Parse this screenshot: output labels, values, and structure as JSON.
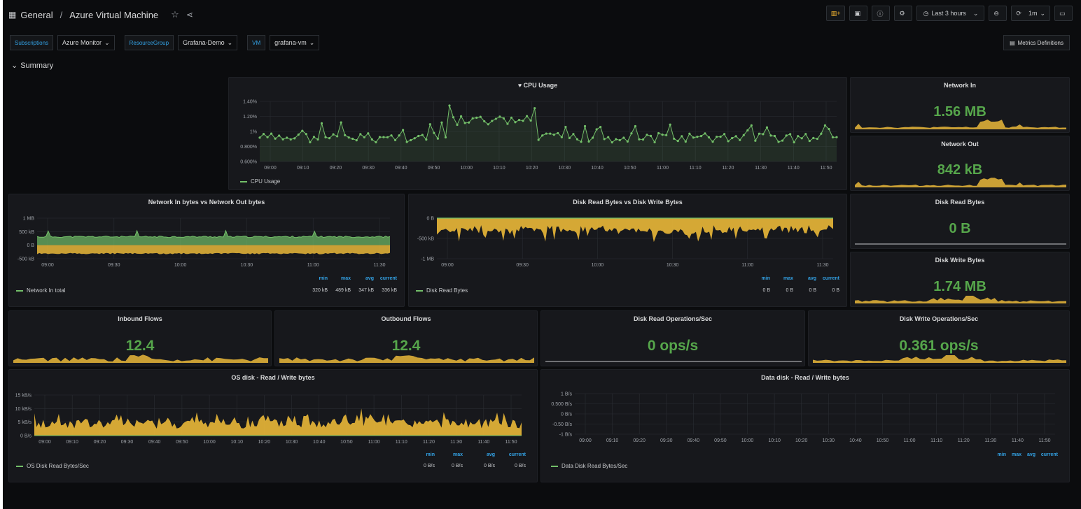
{
  "header": {
    "folder": "General",
    "separator": "/",
    "title": "Azure Virtual Machine"
  },
  "toolbar": {
    "time_range": "Last 3 hours",
    "refresh": "1m"
  },
  "variables": [
    {
      "label": "Subscriptions",
      "value": "Azure Monitor"
    },
    {
      "label": "ResourceGroup",
      "value": "Grafana-Demo"
    },
    {
      "label": "VM",
      "value": "grafana-vm"
    }
  ],
  "metrics_button": "Metrics Definitions",
  "row_title": "Summary",
  "colors": {
    "green": "#73bf69",
    "yellow": "#eab839",
    "stat_green": "#56a64b",
    "blue": "#33a2e5",
    "bg": "#0b0c0e",
    "panel": "#17181c"
  },
  "cpu": {
    "title": "CPU Usage",
    "legend": "CPU Usage",
    "yticks": [
      "1.40%",
      "1.20%",
      "1%",
      "0.800%",
      "0.600%"
    ],
    "xticks": [
      "09:00",
      "09:10",
      "09:20",
      "09:30",
      "09:40",
      "09:50",
      "10:00",
      "10:10",
      "10:20",
      "10:30",
      "10:40",
      "10:50",
      "11:00",
      "11:10",
      "11:20",
      "11:30",
      "11:40",
      "11:50"
    ]
  },
  "stats": {
    "network_in": {
      "title": "Network In",
      "value": "1.56 MB"
    },
    "network_out": {
      "title": "Network Out",
      "value": "842 kB"
    },
    "disk_read_bytes": {
      "title": "Disk Read Bytes",
      "value": "0 B"
    },
    "disk_write_bytes": {
      "title": "Disk Write Bytes",
      "value": "1.74 MB"
    },
    "inbound_flows": {
      "title": "Inbound Flows",
      "value": "12.4"
    },
    "outbound_flows": {
      "title": "Outbound Flows",
      "value": "12.4"
    },
    "disk_read_ops": {
      "title": "Disk Read Operations/Sec",
      "value": "0 ops/s"
    },
    "disk_write_ops": {
      "title": "Disk Write Operations/Sec",
      "value": "0.361 ops/s"
    }
  },
  "net_graph": {
    "title": "Network In bytes vs Network Out bytes",
    "yticks": [
      "1 MB",
      "500 kB",
      "0 B",
      "-500 kB"
    ],
    "xticks": [
      "09:00",
      "09:30",
      "10:00",
      "10:30",
      "11:00",
      "11:30"
    ],
    "legend_headers": [
      "min",
      "max",
      "avg",
      "current"
    ],
    "series": [
      {
        "name": "Network In total",
        "values": [
          "320 kB",
          "489 kB",
          "347 kB",
          "336 kB"
        ]
      }
    ]
  },
  "disk_graph": {
    "title": "Disk Read Bytes vs Disk Write Bytes",
    "yticks": [
      "0 B",
      "-500 kB",
      "-1 MB"
    ],
    "xticks": [
      "09:00",
      "09:30",
      "10:00",
      "10:30",
      "11:00",
      "11:30"
    ],
    "legend_headers": [
      "min",
      "max",
      "avg",
      "current"
    ],
    "series": [
      {
        "name": "Disk Read Bytes",
        "values": [
          "0 B",
          "0 B",
          "0 B",
          "0 B"
        ]
      }
    ]
  },
  "os_disk": {
    "title": "OS disk - Read / Write bytes",
    "yticks": [
      "15 kB/s",
      "10 kB/s",
      "5 kB/s",
      "0 B/s"
    ],
    "xticks": [
      "09:00",
      "09:10",
      "09:20",
      "09:30",
      "09:40",
      "09:50",
      "10:00",
      "10:10",
      "10:20",
      "10:30",
      "10:40",
      "10:50",
      "11:00",
      "11:10",
      "11:20",
      "11:30",
      "11:40",
      "11:50"
    ],
    "legend_headers": [
      "min",
      "max",
      "avg",
      "current"
    ],
    "series": [
      {
        "name": "OS Disk Read Bytes/Sec",
        "values": [
          "0 B/s",
          "0 B/s",
          "0 B/s",
          "0 B/s"
        ]
      }
    ]
  },
  "data_disk": {
    "title": "Data disk - Read / Write bytes",
    "yticks": [
      "1 B/s",
      "0.500 B/s",
      "0 B/s",
      "-0.50 B/s",
      "-1 B/s"
    ],
    "xticks": [
      "09:00",
      "09:10",
      "09:20",
      "09:30",
      "09:40",
      "09:50",
      "10:00",
      "10:10",
      "10:20",
      "10:30",
      "10:40",
      "10:50",
      "11:00",
      "11:10",
      "11:20",
      "11:30",
      "11:40",
      "11:50"
    ],
    "legend_headers": [
      "min",
      "max",
      "avg",
      "current"
    ],
    "series": [
      {
        "name": "Data Disk Read Bytes/Sec"
      }
    ]
  }
}
